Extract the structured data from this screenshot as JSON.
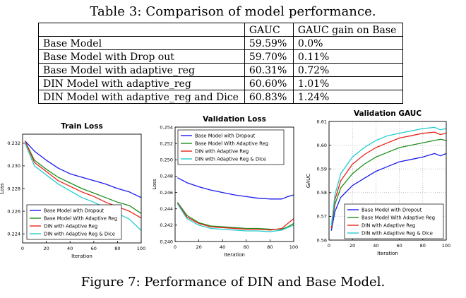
{
  "table": {
    "caption": "Table 3: Comparison of model performance.",
    "headers": [
      "",
      "GAUC",
      "GAUC gain on Base"
    ],
    "rows": [
      [
        "Base Model",
        "59.59%",
        "0.0%"
      ],
      [
        "Base Model with Drop out",
        "59.70%",
        "0.11%"
      ],
      [
        "Base Model with adaptive_reg",
        "60.31%",
        "0.72%"
      ],
      [
        "DIN Model with adaptive_reg",
        "60.60%",
        "1.01%"
      ],
      [
        "DIN Model with adaptive_reg and Dice",
        "60.83%",
        "1.24%"
      ]
    ]
  },
  "figure_caption": "Figure 7: Performance of DIN and Base Model.",
  "colors": {
    "blue": "#1a1aee",
    "green": "#1f8f1f",
    "red": "#e8231a",
    "cyan": "#22cccc"
  },
  "chart_data": [
    {
      "type": "line",
      "title": "Train Loss",
      "xlabel": "Iteration",
      "ylabel": "Loss",
      "xlim": [
        0,
        100
      ],
      "ylim": [
        0.2232,
        0.2328
      ],
      "x_ticks": [
        0,
        20,
        40,
        60,
        80,
        100
      ],
      "y_ticks": [
        0.224,
        0.226,
        0.228,
        0.23,
        0.232
      ],
      "y_tick_labels": [
        "0.224",
        "0.226",
        "0.228",
        "0.230",
        "0.232"
      ],
      "grid": false,
      "legend_position": "bottom-left",
      "series": [
        {
          "name": "Base Model with Dropout",
          "color": "#1a1aee",
          "x": [
            2,
            10,
            20,
            30,
            40,
            50,
            60,
            70,
            80,
            90,
            100
          ],
          "y": [
            0.2322,
            0.2313,
            0.2305,
            0.2298,
            0.2293,
            0.229,
            0.2287,
            0.2284,
            0.228,
            0.2277,
            0.2272
          ]
        },
        {
          "name": "Base Model With Adaptive Reg",
          "color": "#1f8f1f",
          "x": [
            2,
            10,
            20,
            30,
            40,
            50,
            60,
            70,
            80,
            90,
            100
          ],
          "y": [
            0.2322,
            0.2305,
            0.2297,
            0.229,
            0.2285,
            0.228,
            0.2276,
            0.2272,
            0.2268,
            0.2265,
            0.2258
          ]
        },
        {
          "name": "DIN with Adaptive Reg",
          "color": "#e8231a",
          "x": [
            2,
            10,
            20,
            30,
            40,
            50,
            60,
            70,
            80,
            90,
            100
          ],
          "y": [
            0.2322,
            0.2303,
            0.2295,
            0.2287,
            0.2282,
            0.2277,
            0.2273,
            0.2268,
            0.2264,
            0.226,
            0.2254
          ]
        },
        {
          "name": "DIN with Adaptive Reg & Dice",
          "color": "#22cccc",
          "x": [
            2,
            10,
            20,
            30,
            40,
            50,
            60,
            70,
            80,
            90,
            100
          ],
          "y": [
            0.232,
            0.23,
            0.2292,
            0.2284,
            0.2278,
            0.2272,
            0.2268,
            0.2263,
            0.2258,
            0.2253,
            0.2243
          ]
        }
      ]
    },
    {
      "type": "line",
      "title": "Validation Loss",
      "xlabel": "Iteration",
      "ylabel": "Loss",
      "xlim": [
        0,
        100
      ],
      "ylim": [
        0.24,
        0.254
      ],
      "x_ticks": [
        0,
        20,
        40,
        60,
        80,
        100
      ],
      "y_ticks": [
        0.24,
        0.242,
        0.244,
        0.246,
        0.248,
        0.25,
        0.252,
        0.254
      ],
      "y_tick_labels": [
        "0.240",
        "0.242",
        "0.244",
        "0.246",
        "0.248",
        "0.250",
        "0.252",
        "0.254"
      ],
      "grid": false,
      "legend_position": "top-right",
      "series": [
        {
          "name": "Base Model with Dropout",
          "color": "#1a1aee",
          "x": [
            2,
            10,
            20,
            30,
            40,
            50,
            60,
            70,
            80,
            90,
            95,
            100
          ],
          "y": [
            0.2478,
            0.2472,
            0.2467,
            0.2463,
            0.246,
            0.2457,
            0.2455,
            0.2453,
            0.2452,
            0.2452,
            0.2455,
            0.2457
          ]
        },
        {
          "name": "Base Model With Adaptive Reg",
          "color": "#1f8f1f",
          "x": [
            2,
            10,
            20,
            30,
            40,
            50,
            60,
            70,
            80,
            90,
            95,
            100
          ],
          "y": [
            0.2448,
            0.2432,
            0.2423,
            0.2419,
            0.2418,
            0.2417,
            0.2416,
            0.2416,
            0.2415,
            0.2415,
            0.2418,
            0.2422
          ]
        },
        {
          "name": "DIN with Adaptive Reg",
          "color": "#e8231a",
          "x": [
            2,
            10,
            20,
            30,
            40,
            50,
            60,
            70,
            80,
            90,
            95,
            100
          ],
          "y": [
            0.2447,
            0.243,
            0.2422,
            0.2418,
            0.2417,
            0.2416,
            0.2415,
            0.2415,
            0.2414,
            0.2416,
            0.2422,
            0.2428
          ]
        },
        {
          "name": "DIN with Adaptive Reg & Dice",
          "color": "#22cccc",
          "x": [
            2,
            10,
            20,
            30,
            40,
            50,
            60,
            70,
            80,
            90,
            95,
            100
          ],
          "y": [
            0.2446,
            0.2428,
            0.242,
            0.2416,
            0.2415,
            0.2414,
            0.2413,
            0.2413,
            0.2412,
            0.2414,
            0.2417,
            0.242
          ]
        }
      ]
    },
    {
      "type": "line",
      "title": "Validation GAUC",
      "xlabel": "Iteration",
      "ylabel": "GAUC",
      "xlim": [
        0,
        100
      ],
      "ylim": [
        0.56,
        0.61
      ],
      "x_ticks": [
        0,
        20,
        40,
        60,
        80,
        100
      ],
      "y_ticks": [
        0.56,
        0.57,
        0.58,
        0.59,
        0.6,
        0.61
      ],
      "y_tick_labels": [
        "0.56",
        "0.57",
        "0.58",
        "0.59",
        "0.60",
        "0.61"
      ],
      "grid": true,
      "legend_position": "bottom-right",
      "series": [
        {
          "name": "Base Model with Dropout",
          "color": "#1a1aee",
          "x": [
            2,
            5,
            10,
            20,
            30,
            40,
            50,
            60,
            70,
            80,
            90,
            95,
            100
          ],
          "y": [
            0.564,
            0.572,
            0.578,
            0.583,
            0.586,
            0.589,
            0.591,
            0.593,
            0.594,
            0.595,
            0.5965,
            0.5955,
            0.5965
          ]
        },
        {
          "name": "Base Model With Adaptive Reg",
          "color": "#1f8f1f",
          "x": [
            2,
            5,
            10,
            20,
            30,
            40,
            50,
            60,
            70,
            80,
            90,
            95,
            100
          ],
          "y": [
            0.565,
            0.575,
            0.582,
            0.588,
            0.592,
            0.595,
            0.597,
            0.599,
            0.6,
            0.601,
            0.602,
            0.6025,
            0.602
          ]
        },
        {
          "name": "DIN with Adaptive Reg",
          "color": "#e8231a",
          "x": [
            2,
            5,
            10,
            20,
            30,
            40,
            50,
            60,
            70,
            80,
            90,
            95,
            100
          ],
          "y": [
            0.565,
            0.577,
            0.585,
            0.592,
            0.596,
            0.599,
            0.601,
            0.603,
            0.604,
            0.605,
            0.6055,
            0.6045,
            0.605
          ]
        },
        {
          "name": "DIN with Adaptive Reg & Dice",
          "color": "#22cccc",
          "x": [
            2,
            5,
            10,
            20,
            30,
            40,
            50,
            60,
            70,
            80,
            90,
            95,
            100
          ],
          "y": [
            0.566,
            0.579,
            0.588,
            0.595,
            0.599,
            0.602,
            0.604,
            0.605,
            0.606,
            0.607,
            0.6075,
            0.6065,
            0.607
          ]
        }
      ]
    }
  ]
}
